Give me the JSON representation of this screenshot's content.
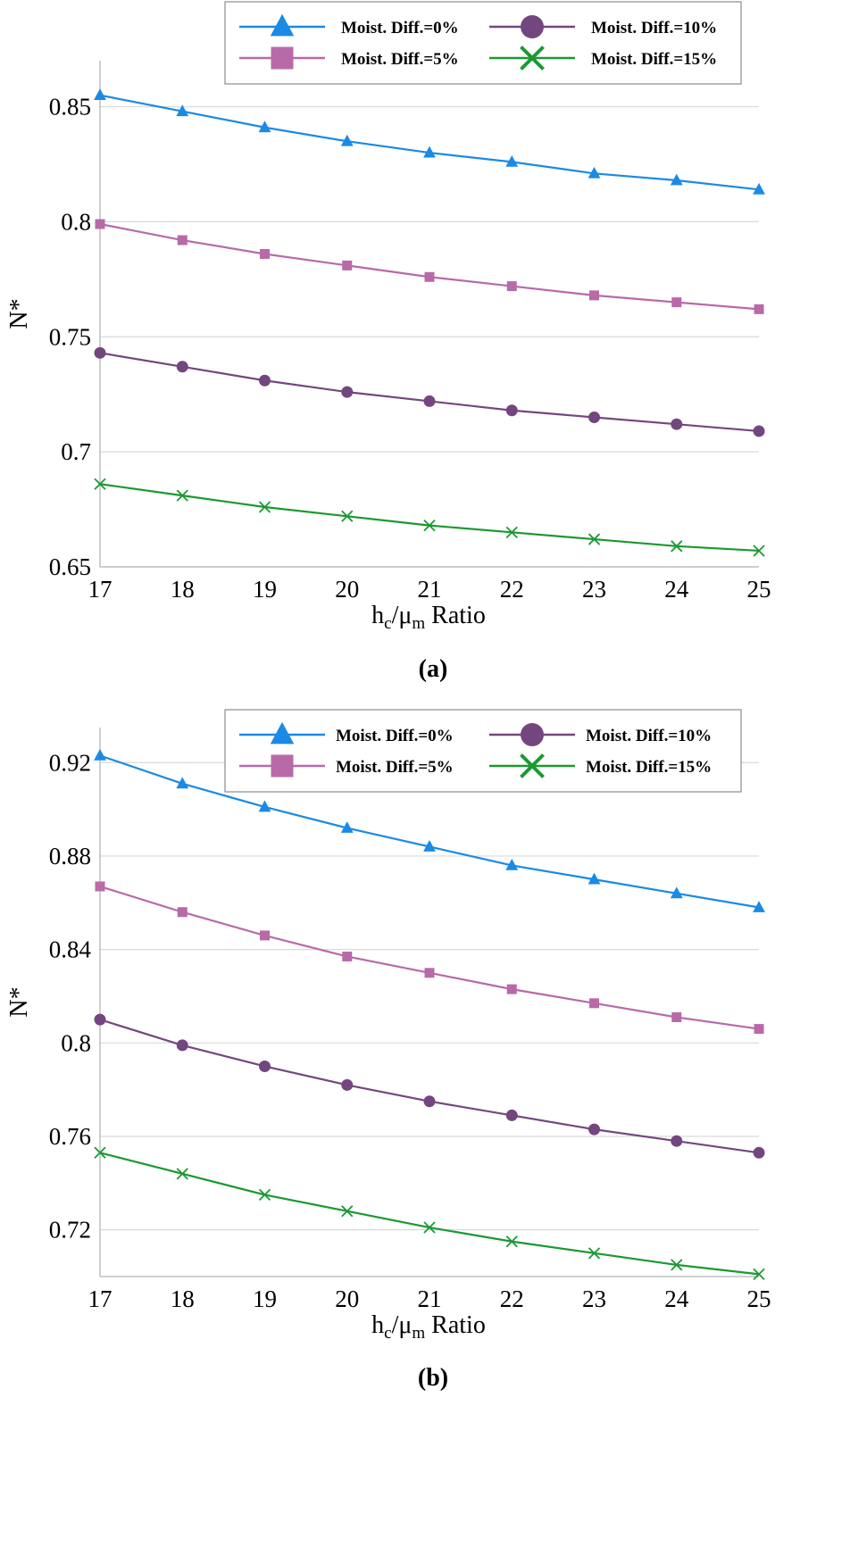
{
  "chart_data": [
    {
      "type": "line",
      "panel_label": "(a)",
      "x": [
        17,
        18,
        19,
        20,
        21,
        22,
        23,
        24,
        25
      ],
      "xlim": [
        17,
        25
      ],
      "ylim": [
        0.65,
        0.87
      ],
      "yticks": [
        0.65,
        0.7,
        0.75,
        0.8,
        0.85
      ],
      "ytick_labels": [
        "0.65",
        "0.7",
        "0.75",
        "0.8",
        "0.85"
      ],
      "xtick_labels": [
        "17",
        "18",
        "19",
        "20",
        "21",
        "22",
        "23",
        "24",
        "25"
      ],
      "ylabel": "N*",
      "xlabel": {
        "main": "h",
        "sub1": "c",
        "mid": "/μ",
        "sub2": "m",
        "tail": " Ratio"
      },
      "legend_position": "top-right",
      "series": [
        {
          "name": "Moist. Diff.=0%",
          "marker": "triangle",
          "color": "#1a8ae5",
          "values": [
            0.855,
            0.848,
            0.841,
            0.835,
            0.83,
            0.826,
            0.821,
            0.818,
            0.814
          ]
        },
        {
          "name": "Moist. Diff.=5%",
          "marker": "square",
          "color": "#b86aa8",
          "values": [
            0.799,
            0.792,
            0.786,
            0.781,
            0.776,
            0.772,
            0.768,
            0.765,
            0.762
          ]
        },
        {
          "name": "Moist. Diff.=10%",
          "marker": "circle",
          "color": "#74467f",
          "values": [
            0.743,
            0.737,
            0.731,
            0.726,
            0.722,
            0.718,
            0.715,
            0.712,
            0.709
          ]
        },
        {
          "name": "Moist. Diff.=15%",
          "marker": "x",
          "color": "#1a9930",
          "values": [
            0.686,
            0.681,
            0.676,
            0.672,
            0.668,
            0.665,
            0.662,
            0.659,
            0.657
          ]
        }
      ]
    },
    {
      "type": "line",
      "panel_label": "(b)",
      "x": [
        17,
        18,
        19,
        20,
        21,
        22,
        23,
        24,
        25
      ],
      "xlim": [
        17,
        25
      ],
      "ylim": [
        0.7,
        0.935
      ],
      "yticks": [
        0.72,
        0.76,
        0.8,
        0.84,
        0.88,
        0.92
      ],
      "ytick_labels": [
        "0.72",
        "0.76",
        "0.8",
        "0.84",
        "0.88",
        "0.92"
      ],
      "xtick_labels": [
        "17",
        "18",
        "19",
        "20",
        "21",
        "22",
        "23",
        "24",
        "25"
      ],
      "ylabel": "N*",
      "xlabel": {
        "main": "h",
        "sub1": "c",
        "mid": "/μ",
        "sub2": "m",
        "tail": " Ratio"
      },
      "legend_position": "top-right",
      "series": [
        {
          "name": "Moist. Diff.=0%",
          "marker": "triangle",
          "color": "#1a8ae5",
          "values": [
            0.923,
            0.911,
            0.901,
            0.892,
            0.884,
            0.876,
            0.87,
            0.864,
            0.858
          ]
        },
        {
          "name": "Moist. Diff.=5%",
          "marker": "square",
          "color": "#b86aa8",
          "values": [
            0.867,
            0.856,
            0.846,
            0.837,
            0.83,
            0.823,
            0.817,
            0.811,
            0.806
          ]
        },
        {
          "name": "Moist. Diff.=10%",
          "marker": "circle",
          "color": "#74467f",
          "values": [
            0.81,
            0.799,
            0.79,
            0.782,
            0.775,
            0.769,
            0.763,
            0.758,
            0.753
          ]
        },
        {
          "name": "Moist. Diff.=15%",
          "marker": "x",
          "color": "#1a9930",
          "values": [
            0.753,
            0.744,
            0.735,
            0.728,
            0.721,
            0.715,
            0.71,
            0.705,
            0.701
          ]
        }
      ]
    }
  ]
}
